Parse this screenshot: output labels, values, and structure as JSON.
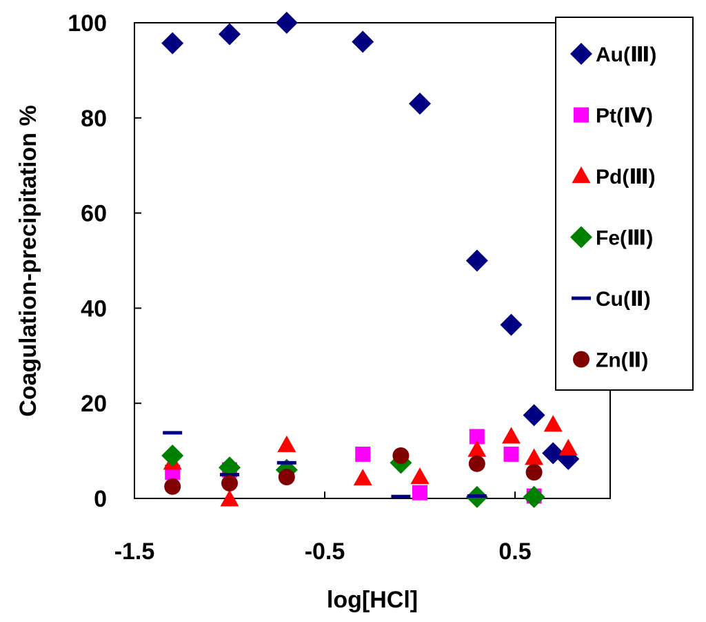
{
  "chart_data": {
    "type": "scatter",
    "title": "",
    "xlabel": "log[HCl]",
    "ylabel": "Coagulation-precipitation %",
    "xlim": [
      -1.5,
      1.0
    ],
    "ylim": [
      0,
      100
    ],
    "grid": false,
    "legend_position": "right",
    "x_ticks": [
      -1.5,
      -0.5,
      0.5
    ],
    "x_tick_labels": [
      "-1.5",
      "-0.5",
      "0.5"
    ],
    "y_ticks": [
      0,
      20,
      40,
      60,
      80,
      100
    ],
    "y_tick_labels": [
      "0",
      "20",
      "40",
      "60",
      "80",
      "100"
    ],
    "series": [
      {
        "name": "Au(Ⅲ)",
        "marker": "diamond",
        "color": "#000080",
        "points": [
          [
            -1.3,
            95.7
          ],
          [
            -1.0,
            97.6
          ],
          [
            -0.7,
            100
          ],
          [
            -0.3,
            96
          ],
          [
            0,
            83
          ],
          [
            0.3,
            50
          ],
          [
            0.48,
            36.5
          ],
          [
            0.6,
            17.5
          ],
          [
            0.7,
            9.5
          ],
          [
            0.78,
            8.3
          ]
        ]
      },
      {
        "name": "Pt(Ⅳ)",
        "marker": "square",
        "color": "#FF00FF",
        "points": [
          [
            -1.3,
            5.5
          ],
          [
            -1.0,
            6.0
          ],
          [
            -0.3,
            9.3
          ],
          [
            0,
            1.2
          ],
          [
            0.3,
            13
          ],
          [
            0.48,
            9.3
          ],
          [
            0.6,
            0.5
          ]
        ]
      },
      {
        "name": "Pd(Ⅲ)",
        "marker": "triangle",
        "color": "#FF0000",
        "points": [
          [
            -1.3,
            7.5
          ],
          [
            -1.0,
            -0.2
          ],
          [
            -0.7,
            11.2
          ],
          [
            -0.3,
            4.2
          ],
          [
            0,
            4.5
          ],
          [
            0.3,
            10.2
          ],
          [
            0.48,
            13
          ],
          [
            0.6,
            8.5
          ],
          [
            0.7,
            15.5
          ],
          [
            0.78,
            10.5
          ]
        ]
      },
      {
        "name": "Fe(Ⅲ)",
        "marker": "diamond",
        "color": "#008000",
        "points": [
          [
            -1.3,
            9.0
          ],
          [
            -1.0,
            6.5
          ],
          [
            -0.7,
            6.0
          ],
          [
            -0.1,
            7.5
          ],
          [
            0.3,
            0.3
          ],
          [
            0.6,
            0.3
          ]
        ]
      },
      {
        "name": "Cu(Ⅱ)",
        "marker": "dash",
        "color": "#000080",
        "points": [
          [
            -1.3,
            13.8
          ],
          [
            -1.0,
            5.0
          ],
          [
            -0.7,
            7.5
          ],
          [
            -0.1,
            0.4
          ],
          [
            0.3,
            0.5
          ]
        ]
      },
      {
        "name": "Zn(Ⅱ)",
        "marker": "circle",
        "color": "#800000",
        "points": [
          [
            -1.3,
            2.5
          ],
          [
            -1.0,
            3.2
          ],
          [
            -0.7,
            4.5
          ],
          [
            -0.1,
            9.0
          ],
          [
            0.3,
            7.3
          ],
          [
            0.6,
            5.5
          ]
        ]
      }
    ]
  }
}
